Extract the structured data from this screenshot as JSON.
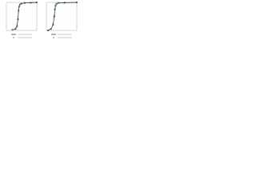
{
  "chart_data": [
    {
      "type": "line",
      "xlim": [
        0,
        100
      ],
      "ylim": [
        0,
        100
      ],
      "x": [
        20,
        30,
        35,
        38,
        40,
        42,
        45,
        50,
        60,
        80,
        100
      ],
      "series": [
        {
          "color": "#222222",
          "style": "line",
          "values": [
            2,
            5,
            15,
            40,
            70,
            85,
            93,
            96,
            98,
            99,
            100
          ]
        },
        {
          "color": "#3a9a3a",
          "style": "markers",
          "values": [
            3,
            8,
            22,
            48,
            74,
            86,
            92,
            97,
            null,
            null,
            null
          ]
        }
      ]
    },
    {
      "type": "line",
      "xlim": [
        0,
        100
      ],
      "ylim": [
        0,
        100
      ],
      "x": [
        5,
        15,
        22,
        26,
        28,
        30,
        33,
        40,
        60,
        100
      ],
      "series": [
        {
          "color": "#222222",
          "style": "line",
          "values": [
            0,
            5,
            20,
            50,
            75,
            88,
            95,
            98,
            99,
            100
          ]
        },
        {
          "color": "#3a9a3a",
          "style": "markers",
          "values": [
            1,
            7,
            26,
            55,
            78,
            90,
            94,
            97,
            null,
            null
          ]
        }
      ]
    }
  ]
}
